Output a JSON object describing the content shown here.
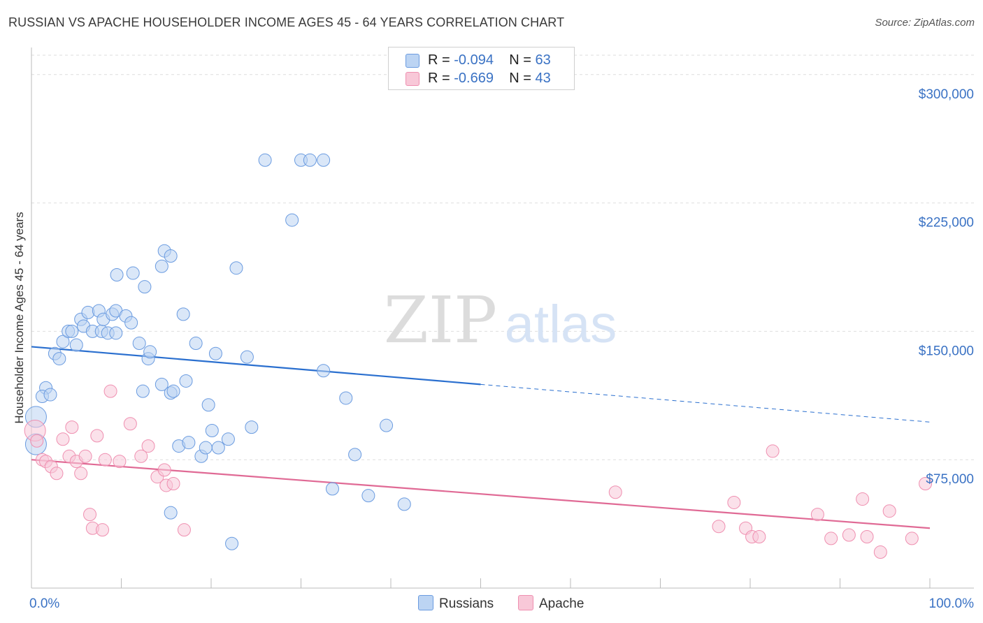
{
  "title": "RUSSIAN VS APACHE HOUSEHOLDER INCOME AGES 45 - 64 YEARS CORRELATION CHART",
  "source": "Source: ZipAtlas.com",
  "watermark": {
    "zip": "ZIP",
    "atlas": "atlas"
  },
  "legend": {
    "rows": [
      {
        "r_label": "R = ",
        "r_value": "-0.094",
        "n_label": "N = ",
        "n_value": "63"
      },
      {
        "r_label": "R = ",
        "r_value": "-0.669",
        "n_label": "N = ",
        "n_value": "43"
      }
    ]
  },
  "bottom_legend": {
    "series1": "Russians",
    "series2": "Apache"
  },
  "chart_data": {
    "type": "scatter",
    "title": "RUSSIAN VS APACHE HOUSEHOLDER INCOME AGES 45 - 64 YEARS CORRELATION CHART",
    "xlabel": "",
    "ylabel": "Householder Income Ages 45 - 64 years",
    "xlim": [
      0,
      100
    ],
    "ylim": [
      0,
      315000
    ],
    "x_tick_labels": [
      "0.0%",
      "100.0%"
    ],
    "y_ticks": [
      75000,
      150000,
      225000,
      300000
    ],
    "y_tick_labels": [
      "$75,000",
      "$150,000",
      "$225,000",
      "$300,000"
    ],
    "grid": "horizontal dashed",
    "legend_position": "top-center",
    "colors": {
      "russians": "#6a9be0",
      "apache": "#ef8fb0",
      "russians_line": "#2a6fcf",
      "apache_line": "#e06a95",
      "tick_labels": "#3a72c4"
    },
    "series": [
      {
        "name": "Russians",
        "r": -0.094,
        "n": 63,
        "trend": {
          "x0": 0,
          "y0": 141000,
          "x1": 50,
          "y1": 119000,
          "dashed_to_x": 100,
          "dashed_to_y": 97000
        },
        "points": [
          [
            0.5,
            84000,
            2
          ],
          [
            0.5,
            100000,
            2
          ],
          [
            1.6,
            117000,
            1
          ],
          [
            1.2,
            112000,
            1
          ],
          [
            2.1,
            113000,
            1
          ],
          [
            2.6,
            137000,
            1
          ],
          [
            3.1,
            134000,
            1
          ],
          [
            3.5,
            144000,
            1
          ],
          [
            4.1,
            150000,
            1
          ],
          [
            4.5,
            150000,
            1
          ],
          [
            5.0,
            142000,
            1
          ],
          [
            5.5,
            157000,
            1
          ],
          [
            5.8,
            153000,
            1
          ],
          [
            6.3,
            161000,
            1
          ],
          [
            6.8,
            150000,
            1
          ],
          [
            7.5,
            162000,
            1
          ],
          [
            7.8,
            150000,
            1
          ],
          [
            8.5,
            149000,
            1
          ],
          [
            8.0,
            157000,
            1
          ],
          [
            9.0,
            160000,
            1
          ],
          [
            9.4,
            162000,
            1
          ],
          [
            9.4,
            149000,
            1
          ],
          [
            9.5,
            183000,
            1
          ],
          [
            10.5,
            159000,
            1
          ],
          [
            11.3,
            184000,
            1
          ],
          [
            11.1,
            155000,
            1
          ],
          [
            12.0,
            143000,
            1
          ],
          [
            12.6,
            176000,
            1
          ],
          [
            12.4,
            115000,
            1
          ],
          [
            13.0,
            134000,
            1
          ],
          [
            13.2,
            138000,
            1
          ],
          [
            14.5,
            188000,
            1
          ],
          [
            14.8,
            197000,
            1
          ],
          [
            15.5,
            194000,
            1
          ],
          [
            14.5,
            119000,
            1
          ],
          [
            15.5,
            114000,
            1
          ],
          [
            15.8,
            115000,
            1
          ],
          [
            16.4,
            83000,
            1
          ],
          [
            16.9,
            160000,
            1
          ],
          [
            17.2,
            121000,
            1
          ],
          [
            17.5,
            85000,
            1
          ],
          [
            18.3,
            143000,
            1
          ],
          [
            18.9,
            77000,
            1
          ],
          [
            19.4,
            82000,
            1
          ],
          [
            19.7,
            107000,
            1
          ],
          [
            20.1,
            92000,
            1
          ],
          [
            20.5,
            137000,
            1
          ],
          [
            20.8,
            82000,
            1
          ],
          [
            21.9,
            87000,
            1
          ],
          [
            22.3,
            26000,
            1
          ],
          [
            22.8,
            187000,
            1
          ],
          [
            24.0,
            135000,
            1
          ],
          [
            24.5,
            94000,
            1
          ],
          [
            26.0,
            250000,
            1
          ],
          [
            29.0,
            215000,
            1
          ],
          [
            30.0,
            250000,
            1
          ],
          [
            31.0,
            250000,
            1
          ],
          [
            32.5,
            250000,
            1
          ],
          [
            32.5,
            127000,
            1
          ],
          [
            33.5,
            58000,
            1
          ],
          [
            35.0,
            111000,
            1
          ],
          [
            36.0,
            78000,
            1
          ],
          [
            37.5,
            54000,
            1
          ],
          [
            39.5,
            95000,
            1
          ],
          [
            41.5,
            49000,
            1
          ],
          [
            15.5,
            44000,
            1
          ]
        ]
      },
      {
        "name": "Apache",
        "r": -0.669,
        "n": 43,
        "trend": {
          "x0": 0,
          "y0": 75000,
          "x1": 100,
          "y1": 35000
        },
        "points": [
          [
            0.4,
            92000,
            2
          ],
          [
            0.6,
            86000,
            1
          ],
          [
            1.2,
            75000,
            1
          ],
          [
            1.6,
            74000,
            1
          ],
          [
            2.2,
            71000,
            1
          ],
          [
            2.8,
            67000,
            1
          ],
          [
            3.5,
            87000,
            1
          ],
          [
            4.2,
            77000,
            1
          ],
          [
            4.5,
            94000,
            1
          ],
          [
            5.0,
            74000,
            1
          ],
          [
            5.5,
            67000,
            1
          ],
          [
            6.0,
            77000,
            1
          ],
          [
            6.5,
            43000,
            1
          ],
          [
            6.8,
            35000,
            1
          ],
          [
            7.3,
            89000,
            1
          ],
          [
            7.9,
            34000,
            1
          ],
          [
            8.2,
            75000,
            1
          ],
          [
            8.8,
            115000,
            1
          ],
          [
            9.8,
            74000,
            1
          ],
          [
            11.0,
            96000,
            1
          ],
          [
            12.2,
            77000,
            1
          ],
          [
            13.0,
            83000,
            1
          ],
          [
            14.0,
            65000,
            1
          ],
          [
            14.8,
            69000,
            1
          ],
          [
            15.0,
            60000,
            1
          ],
          [
            15.8,
            61000,
            1
          ],
          [
            17.0,
            34000,
            1
          ],
          [
            65.0,
            56000,
            1
          ],
          [
            76.5,
            36000,
            1
          ],
          [
            78.2,
            50000,
            1
          ],
          [
            79.5,
            35000,
            1
          ],
          [
            80.2,
            30000,
            1
          ],
          [
            81.0,
            30000,
            1
          ],
          [
            82.5,
            80000,
            1
          ],
          [
            87.5,
            43000,
            1
          ],
          [
            89.0,
            29000,
            1
          ],
          [
            91.0,
            31000,
            1
          ],
          [
            92.5,
            52000,
            1
          ],
          [
            93.0,
            30000,
            1
          ],
          [
            94.5,
            21000,
            1
          ],
          [
            95.5,
            45000,
            1
          ],
          [
            98.0,
            29000,
            1
          ],
          [
            99.5,
            61000,
            1
          ]
        ]
      }
    ]
  }
}
